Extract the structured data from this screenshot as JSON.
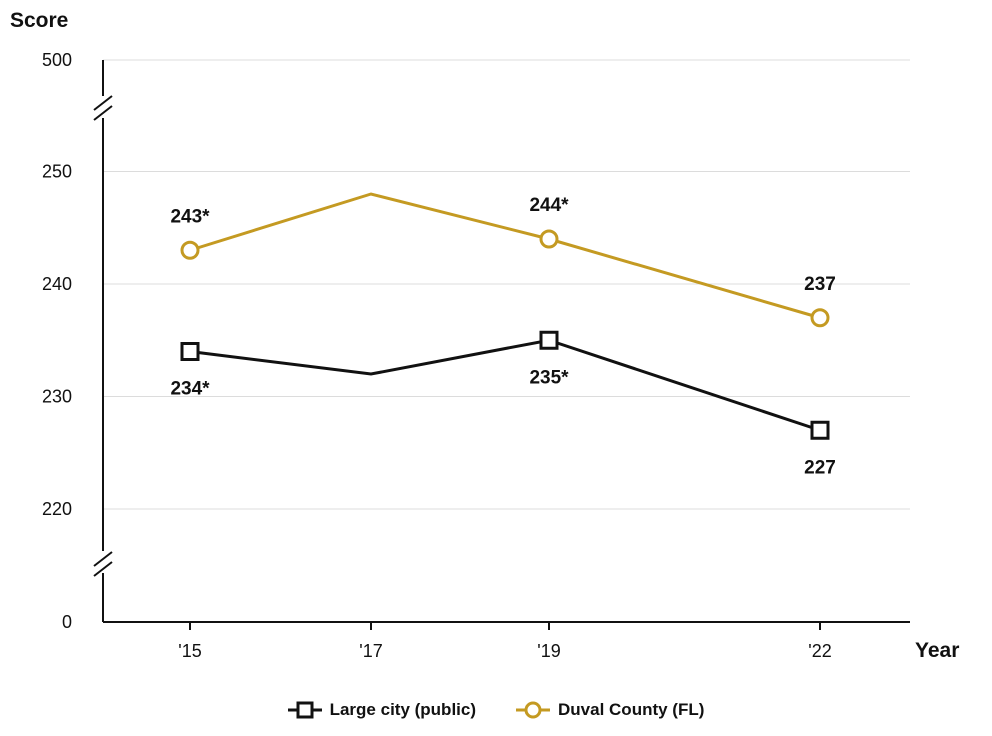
{
  "chart_data": {
    "type": "line",
    "y_axis_title": "Score",
    "x_axis_title": "Year",
    "categories": [
      "'15",
      "'17",
      "'19",
      "'22"
    ],
    "y_ticks": [
      "0",
      "220",
      "230",
      "240",
      "250",
      "500"
    ],
    "y_axis_breaks": true,
    "grid": true,
    "series": [
      {
        "name": "Large city (public)",
        "color": "#111111",
        "marker": "square",
        "values": [
          234,
          232,
          235,
          227
        ],
        "labels": [
          "234*",
          "",
          "235*",
          "227"
        ]
      },
      {
        "name": "Duval County (FL)",
        "color": "#c49a22",
        "marker": "circle",
        "values": [
          243,
          248,
          244,
          237
        ],
        "labels": [
          "243*",
          "",
          "244*",
          "237"
        ]
      }
    ],
    "legend_placement": "bottom-center"
  }
}
